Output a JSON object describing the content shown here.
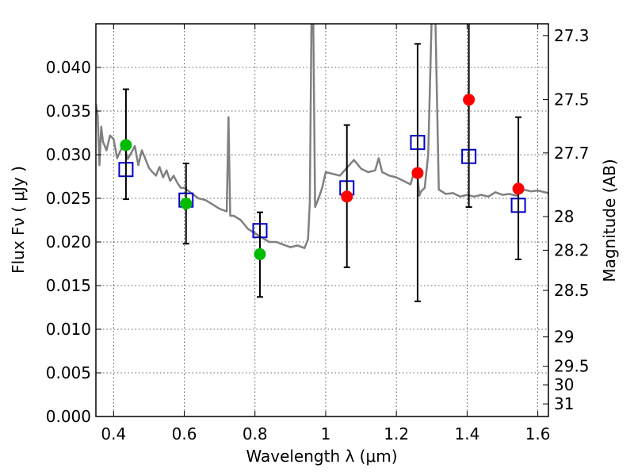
{
  "chart_data": {
    "type": "scatter",
    "title": "",
    "xlabel": "Wavelength  λ (μm)",
    "ylabel": "Flux  Fν  ( μJy )",
    "ylabel_right": "Magnitude (AB)",
    "xlim": [
      0.35,
      1.63
    ],
    "ylim": [
      0.0,
      0.045
    ],
    "grid": true,
    "x_ticks": [
      {
        "value": 0.4,
        "label": "0.4"
      },
      {
        "value": 0.6,
        "label": "0.6"
      },
      {
        "value": 0.8,
        "label": "0.8"
      },
      {
        "value": 1.0,
        "label": "1"
      },
      {
        "value": 1.2,
        "label": "1.2"
      },
      {
        "value": 1.4,
        "label": "1.4"
      },
      {
        "value": 1.6,
        "label": "1.6"
      }
    ],
    "y_ticks": [
      {
        "value": 0.0,
        "label": "0.000"
      },
      {
        "value": 0.005,
        "label": "0.005"
      },
      {
        "value": 0.01,
        "label": "0.010"
      },
      {
        "value": 0.015,
        "label": "0.015"
      },
      {
        "value": 0.02,
        "label": "0.020"
      },
      {
        "value": 0.025,
        "label": "0.025"
      },
      {
        "value": 0.03,
        "label": "0.030"
      },
      {
        "value": 0.035,
        "label": "0.035"
      },
      {
        "value": 0.04,
        "label": "0.040"
      }
    ],
    "right_ticks": [
      {
        "mag": 27.3,
        "label": "27.3"
      },
      {
        "mag": 27.5,
        "label": "27.5"
      },
      {
        "mag": 27.7,
        "label": "27.7"
      },
      {
        "mag": 28.0,
        "label": "28"
      },
      {
        "mag": 28.2,
        "label": "28.2"
      },
      {
        "mag": 28.5,
        "label": "28.5"
      },
      {
        "mag": 29.0,
        "label": "29"
      },
      {
        "mag": 29.5,
        "label": "29.5"
      },
      {
        "mag": 30.0,
        "label": "30"
      },
      {
        "mag": 31.0,
        "label": "31"
      }
    ],
    "colors": {
      "model": "#808080",
      "green": "#00bb00",
      "red": "#ff0000",
      "square": "#0000cc",
      "errorbar": "#000000"
    },
    "model_spectrum": {
      "x": [
        0.35,
        0.355,
        0.36,
        0.365,
        0.37,
        0.38,
        0.39,
        0.4,
        0.41,
        0.42,
        0.43,
        0.44,
        0.45,
        0.46,
        0.47,
        0.48,
        0.49,
        0.5,
        0.51,
        0.52,
        0.53,
        0.54,
        0.55,
        0.56,
        0.57,
        0.58,
        0.59,
        0.6,
        0.62,
        0.64,
        0.66,
        0.68,
        0.7,
        0.72,
        0.725,
        0.73,
        0.74,
        0.76,
        0.78,
        0.8,
        0.82,
        0.84,
        0.86,
        0.88,
        0.9,
        0.92,
        0.94,
        0.95,
        0.955,
        0.96,
        0.965,
        0.97,
        0.98,
        0.99,
        1.0,
        1.02,
        1.04,
        1.06,
        1.08,
        1.1,
        1.12,
        1.14,
        1.15,
        1.16,
        1.18,
        1.2,
        1.22,
        1.24,
        1.25,
        1.26,
        1.265,
        1.27,
        1.28,
        1.29,
        1.3,
        1.31,
        1.32,
        1.34,
        1.36,
        1.38,
        1.4,
        1.42,
        1.44,
        1.46,
        1.48,
        1.5,
        1.52,
        1.54,
        1.56,
        1.58,
        1.6,
        1.63
      ],
      "y": [
        0.0358,
        0.0345,
        0.0288,
        0.0332,
        0.0315,
        0.0305,
        0.0322,
        0.0318,
        0.0296,
        0.0305,
        0.0312,
        0.0295,
        0.0302,
        0.031,
        0.0288,
        0.0305,
        0.0295,
        0.0285,
        0.028,
        0.0276,
        0.0286,
        0.0274,
        0.0282,
        0.027,
        0.0276,
        0.0268,
        0.0262,
        0.0262,
        0.0256,
        0.025,
        0.0248,
        0.0243,
        0.0238,
        0.0235,
        0.0343,
        0.023,
        0.023,
        0.0225,
        0.0215,
        0.021,
        0.0205,
        0.02,
        0.02,
        0.0197,
        0.0194,
        0.0196,
        0.0193,
        0.0203,
        0.0245,
        0.046,
        0.0455,
        0.024,
        0.025,
        0.0262,
        0.028,
        0.0278,
        0.0276,
        0.0285,
        0.0294,
        0.0284,
        0.028,
        0.0282,
        0.0296,
        0.028,
        0.0276,
        0.0274,
        0.027,
        0.0266,
        0.028,
        0.0275,
        0.0253,
        0.0258,
        0.0262,
        0.03,
        0.046,
        0.046,
        0.026,
        0.0255,
        0.0256,
        0.0252,
        0.0254,
        0.0252,
        0.0254,
        0.0252,
        0.0257,
        0.0254,
        0.0255,
        0.0253,
        0.026,
        0.0258,
        0.0259,
        0.0256
      ]
    },
    "series": [
      {
        "marker": "square",
        "x": [
          0.435,
          0.605,
          0.814,
          1.06,
          1.26,
          1.405,
          1.545
        ],
        "y": [
          0.0283,
          0.0248,
          0.0213,
          0.0262,
          0.0314,
          0.0298,
          0.0242
        ]
      },
      {
        "marker": "circle",
        "color": "green",
        "x": [
          0.435,
          0.605,
          0.814
        ],
        "y": [
          0.0311,
          0.0244,
          0.0186
        ],
        "yerr_low": [
          0.0062,
          0.0046,
          0.0049
        ],
        "yerr_high": [
          0.0064,
          0.0046,
          0.0048
        ]
      },
      {
        "marker": "circle",
        "color": "red",
        "x": [
          1.06,
          1.26,
          1.405,
          1.545
        ],
        "y": [
          0.0252,
          0.0279,
          0.0363,
          0.0261
        ],
        "yerr_low": [
          0.0081,
          0.0147,
          0.0123,
          0.0081
        ],
        "yerr_high": [
          0.0082,
          0.0148,
          0.0125,
          0.0082
        ]
      }
    ]
  }
}
